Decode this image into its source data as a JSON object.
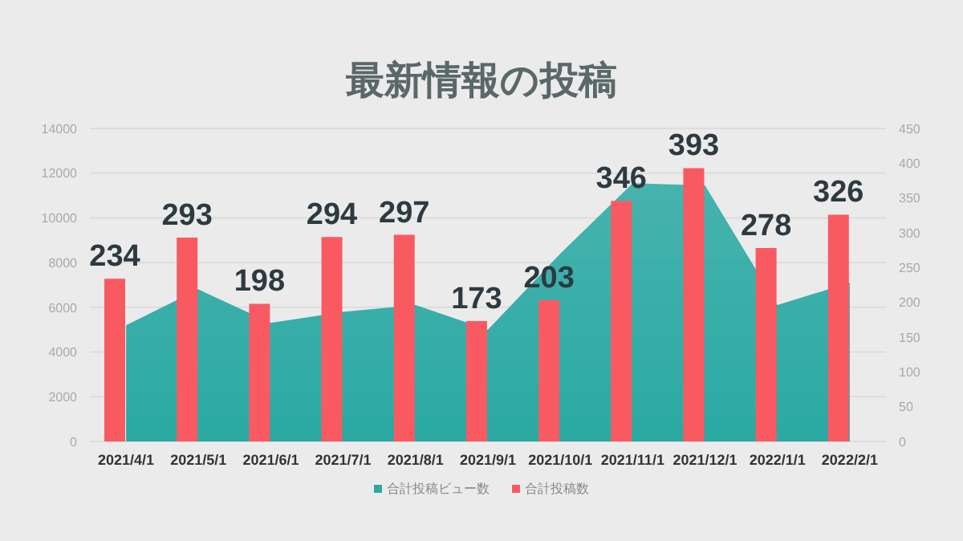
{
  "chart_data": {
    "type": "bar",
    "title": "最新情報の投稿",
    "categories": [
      "2021/4/1",
      "2021/5/1",
      "2021/6/1",
      "2021/7/1",
      "2021/8/1",
      "2021/9/1",
      "2021/10/1",
      "2021/11/1",
      "2021/12/1",
      "2022/1/1",
      "2022/2/1"
    ],
    "series": [
      {
        "name": "合計投稿ビュー数",
        "type": "area",
        "color": "#2aa9a3",
        "values": [
          5200,
          6800,
          5300,
          5800,
          6100,
          5000,
          8400,
          11550,
          11450,
          6100,
          7100
        ]
      },
      {
        "name": "合計投稿数",
        "axis": "y2",
        "color": "#f95a62",
        "values": [
          234,
          293,
          198,
          294,
          297,
          173,
          203,
          346,
          393,
          278,
          326
        ],
        "value_labels": [
          "234",
          "293",
          "198",
          "294",
          "297",
          "173",
          "203",
          "346",
          "393",
          "278",
          "326"
        ]
      }
    ],
    "ylim": [
      0,
      14000
    ],
    "yticks": [
      0,
      2000,
      4000,
      6000,
      8000,
      10000,
      12000,
      14000
    ],
    "y2lim": [
      0,
      450
    ],
    "y2ticks": [
      0,
      50,
      100,
      150,
      200,
      250,
      300,
      350,
      400,
      450
    ],
    "grid": "y",
    "legend": "bottom"
  }
}
